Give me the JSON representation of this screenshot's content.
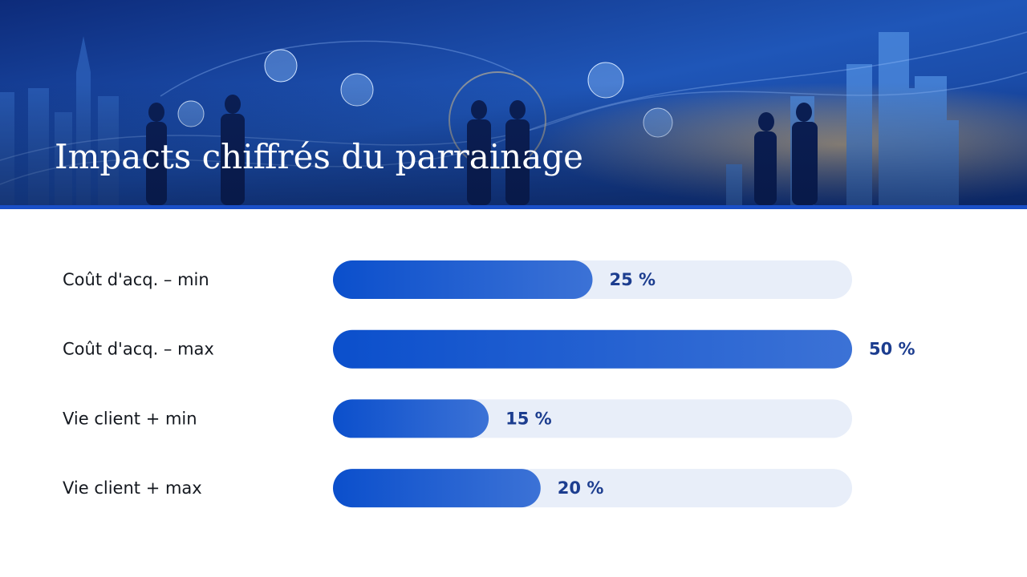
{
  "chart_data": {
    "type": "bar",
    "title": "Impacts chiffrés du parrainage",
    "categories": [
      "Coût d'acq. – min",
      "Coût d'acq. – max",
      "Vie client + min",
      "Vie client + max"
    ],
    "values": [
      25,
      50,
      15,
      20
    ],
    "value_labels": [
      "25 %",
      "50 %",
      "15 %",
      "20 %"
    ],
    "color": "#0b4fcc",
    "xlim": [
      0,
      50
    ]
  }
}
